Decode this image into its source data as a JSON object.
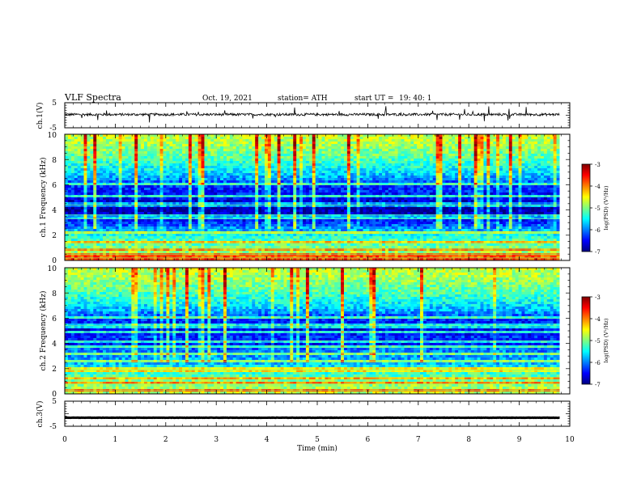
{
  "header": {
    "title": "VLF  Spectra",
    "date": "Oct. 19, 2021",
    "station": "station= ATH",
    "start_label": "start  UT  =",
    "start_time": "19: 40: 1"
  },
  "colors": {
    "jet": [
      "#00007f",
      "#0000ff",
      "#007fff",
      "#00ffff",
      "#7fff7f",
      "#ffff00",
      "#ff7f00",
      "#ff0000",
      "#7f0000"
    ],
    "waveform": "#000000",
    "background": "#ffffff"
  },
  "chart_data": [
    {
      "id": "ch1_waveform",
      "type": "line",
      "ylabel": "ch.1(V)",
      "ylim": [
        -5,
        5
      ],
      "yticks": [
        "5",
        "-5"
      ],
      "xlim": [
        0,
        10
      ],
      "series": [
        {
          "baseline": 0.3,
          "noise_amplitude": 0.5,
          "end_min": 9.8
        }
      ]
    },
    {
      "id": "ch1_spectrogram",
      "type": "heatmap",
      "ylabel": "ch.1  Frequency  (kHz)",
      "ylim": [
        0,
        10
      ],
      "yticks": [
        "0",
        "2",
        "4",
        "6",
        "8",
        "10"
      ],
      "xlim": [
        0,
        10
      ],
      "end_min": 9.8,
      "color_scale": {
        "label": "log(PSD) (V²/Hz)",
        "range": [
          -7,
          -3
        ],
        "ticks": [
          "-3",
          "-4",
          "-5",
          "-6",
          "-7"
        ]
      },
      "log_psd_profile": [
        {
          "freq_khz": 0.0,
          "value": -4.6
        },
        {
          "freq_khz": 0.5,
          "value": -4.8
        },
        {
          "freq_khz": 1.0,
          "value": -5.0
        },
        {
          "freq_khz": 1.5,
          "value": -5.2
        },
        {
          "freq_khz": 2.0,
          "value": -5.4
        },
        {
          "freq_khz": 2.5,
          "value": -5.9
        },
        {
          "freq_khz": 3.0,
          "value": -6.3
        },
        {
          "freq_khz": 3.5,
          "value": -6.7
        },
        {
          "freq_khz": 4.0,
          "value": -6.85
        },
        {
          "freq_khz": 4.5,
          "value": -6.75
        },
        {
          "freq_khz": 5.0,
          "value": -6.5
        },
        {
          "freq_khz": 6.0,
          "value": -6.3
        },
        {
          "freq_khz": 6.5,
          "value": -5.9
        },
        {
          "freq_khz": 7.0,
          "value": -5.6
        },
        {
          "freq_khz": 8.0,
          "value": -5.2
        },
        {
          "freq_khz": 9.0,
          "value": -4.9
        },
        {
          "freq_khz": 10.0,
          "value": -4.7
        }
      ],
      "tone_lines_khz": [
        0.2,
        0.5,
        0.9,
        1.4,
        2.2,
        3.3,
        3.6,
        4.4,
        5.1,
        6.0
      ]
    },
    {
      "id": "ch2_spectrogram",
      "type": "heatmap",
      "ylabel": "ch.2  Frequency  (kHz)",
      "ylim": [
        0,
        10
      ],
      "yticks": [
        "0",
        "2",
        "4",
        "6",
        "8",
        "10"
      ],
      "xlim": [
        0,
        10
      ],
      "end_min": 9.8,
      "color_scale": {
        "label": "log(PSD) (V²/Hz)",
        "range": [
          -7,
          -3
        ],
        "ticks": [
          "-3",
          "-4",
          "-5",
          "-6",
          "-7"
        ]
      },
      "log_psd_profile": [
        {
          "freq_khz": 0.0,
          "value": -4.7
        },
        {
          "freq_khz": 0.5,
          "value": -4.9
        },
        {
          "freq_khz": 1.0,
          "value": -5.0
        },
        {
          "freq_khz": 1.5,
          "value": -5.2
        },
        {
          "freq_khz": 2.0,
          "value": -5.4
        },
        {
          "freq_khz": 2.5,
          "value": -5.8
        },
        {
          "freq_khz": 3.0,
          "value": -5.9
        },
        {
          "freq_khz": 3.5,
          "value": -6.0
        },
        {
          "freq_khz": 4.0,
          "value": -6.5
        },
        {
          "freq_khz": 4.5,
          "value": -6.3
        },
        {
          "freq_khz": 5.0,
          "value": -6.6
        },
        {
          "freq_khz": 6.0,
          "value": -6.3
        },
        {
          "freq_khz": 6.5,
          "value": -5.9
        },
        {
          "freq_khz": 7.0,
          "value": -5.6
        },
        {
          "freq_khz": 8.0,
          "value": -5.2
        },
        {
          "freq_khz": 9.0,
          "value": -4.9
        },
        {
          "freq_khz": 10.0,
          "value": -4.7
        }
      ],
      "tone_lines_khz": [
        0.3,
        0.8,
        1.3,
        1.9,
        2.6,
        3.2,
        3.7,
        4.2,
        4.9,
        5.4,
        6.0
      ]
    },
    {
      "id": "ch3_waveform",
      "type": "line",
      "ylabel": "ch.3(V)",
      "ylim": [
        -5,
        5
      ],
      "yticks": [
        "5",
        "-5"
      ],
      "xlim": [
        0,
        10
      ],
      "series": [
        {
          "baseline": -1.6,
          "noise_amplitude": 0.05,
          "end_min": 9.8
        }
      ],
      "xlabel": "Time  (min)",
      "xticks": [
        "0",
        "1",
        "2",
        "3",
        "4",
        "5",
        "6",
        "7",
        "8",
        "9",
        "10"
      ]
    }
  ]
}
